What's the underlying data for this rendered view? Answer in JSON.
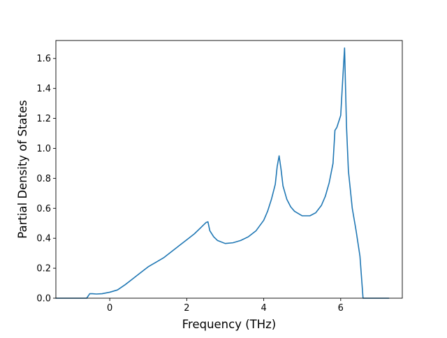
{
  "chart_data": {
    "type": "line",
    "title": "",
    "xlabel": "Frequency (THz)",
    "ylabel": "Partial Density of States",
    "xlim": [
      -1.4,
      7.6
    ],
    "ylim": [
      0.0,
      1.72
    ],
    "xticks": [
      0,
      2,
      4,
      6
    ],
    "yticks": [
      0.0,
      0.2,
      0.4,
      0.6,
      0.8,
      1.0,
      1.2,
      1.4,
      1.6
    ],
    "xtick_labels": [
      "0",
      "2",
      "4",
      "6"
    ],
    "ytick_labels": [
      "0.0",
      "0.2",
      "0.4",
      "0.6",
      "0.8",
      "1.0",
      "1.2",
      "1.4",
      "1.6"
    ],
    "grid": false,
    "legend": "none",
    "series": [
      {
        "color": "#1f77b4",
        "x": [
          -1.4,
          -0.6,
          -0.52,
          -0.45,
          -0.35,
          -0.2,
          0.0,
          0.2,
          0.4,
          0.6,
          0.8,
          1.0,
          1.2,
          1.4,
          1.6,
          1.8,
          2.0,
          2.2,
          2.4,
          2.5,
          2.55,
          2.6,
          2.7,
          2.8,
          3.0,
          3.2,
          3.4,
          3.6,
          3.8,
          4.0,
          4.1,
          4.2,
          4.3,
          4.35,
          4.4,
          4.45,
          4.5,
          4.6,
          4.7,
          4.8,
          5.0,
          5.2,
          5.35,
          5.5,
          5.6,
          5.7,
          5.8,
          5.85,
          5.9,
          6.0,
          6.05,
          6.1,
          6.15,
          6.2,
          6.3,
          6.4,
          6.5,
          6.58,
          6.6,
          6.8,
          7.0,
          7.25
        ],
        "y": [
          0.0,
          0.0,
          0.03,
          0.03,
          0.028,
          0.03,
          0.04,
          0.055,
          0.09,
          0.13,
          0.17,
          0.21,
          0.24,
          0.27,
          0.31,
          0.35,
          0.39,
          0.43,
          0.48,
          0.505,
          0.51,
          0.45,
          0.41,
          0.385,
          0.365,
          0.37,
          0.385,
          0.41,
          0.45,
          0.52,
          0.58,
          0.66,
          0.76,
          0.88,
          0.95,
          0.86,
          0.75,
          0.66,
          0.61,
          0.58,
          0.55,
          0.55,
          0.57,
          0.62,
          0.68,
          0.77,
          0.9,
          1.12,
          1.14,
          1.22,
          1.45,
          1.67,
          1.15,
          0.85,
          0.6,
          0.45,
          0.28,
          0.0,
          0.0,
          0.0,
          0.0,
          0.0
        ]
      }
    ]
  }
}
